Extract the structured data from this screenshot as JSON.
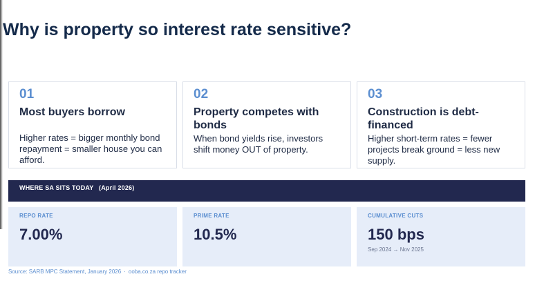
{
  "title": "Why is property so interest rate sensitive?",
  "cards": [
    {
      "number": "01",
      "heading": "Most buyers borrow",
      "body": "Higher rates = bigger monthly bond repayment = smaller house you can afford."
    },
    {
      "number": "02",
      "heading": "Property competes with bonds",
      "body": "When bond yields rise, investors shift money OUT of property."
    },
    {
      "number": "03",
      "heading": "Construction is debt-financed",
      "body": "Higher short-term rates = fewer projects break ground = less new supply."
    }
  ],
  "banner": {
    "label": "WHERE SA SITS TODAY",
    "date": "(April 2026)"
  },
  "stats": [
    {
      "label": "REPO RATE",
      "value": "7.00%",
      "sub": ""
    },
    {
      "label": "PRIME RATE",
      "value": "10.5%",
      "sub": ""
    },
    {
      "label": "CUMULATIVE CUTS",
      "value": "150 bps",
      "sub": "Sep 2024 → Nov 2025"
    }
  ],
  "source": {
    "left": "Source: SARB MPC Statement, January 2026",
    "separator": "·",
    "right": "ooba.co.za repo tracker"
  },
  "colors": {
    "title": "#142a4a",
    "accent": "#5b8ed0",
    "banner_bg": "#22284f",
    "stat_bg": "#e6edf9"
  }
}
